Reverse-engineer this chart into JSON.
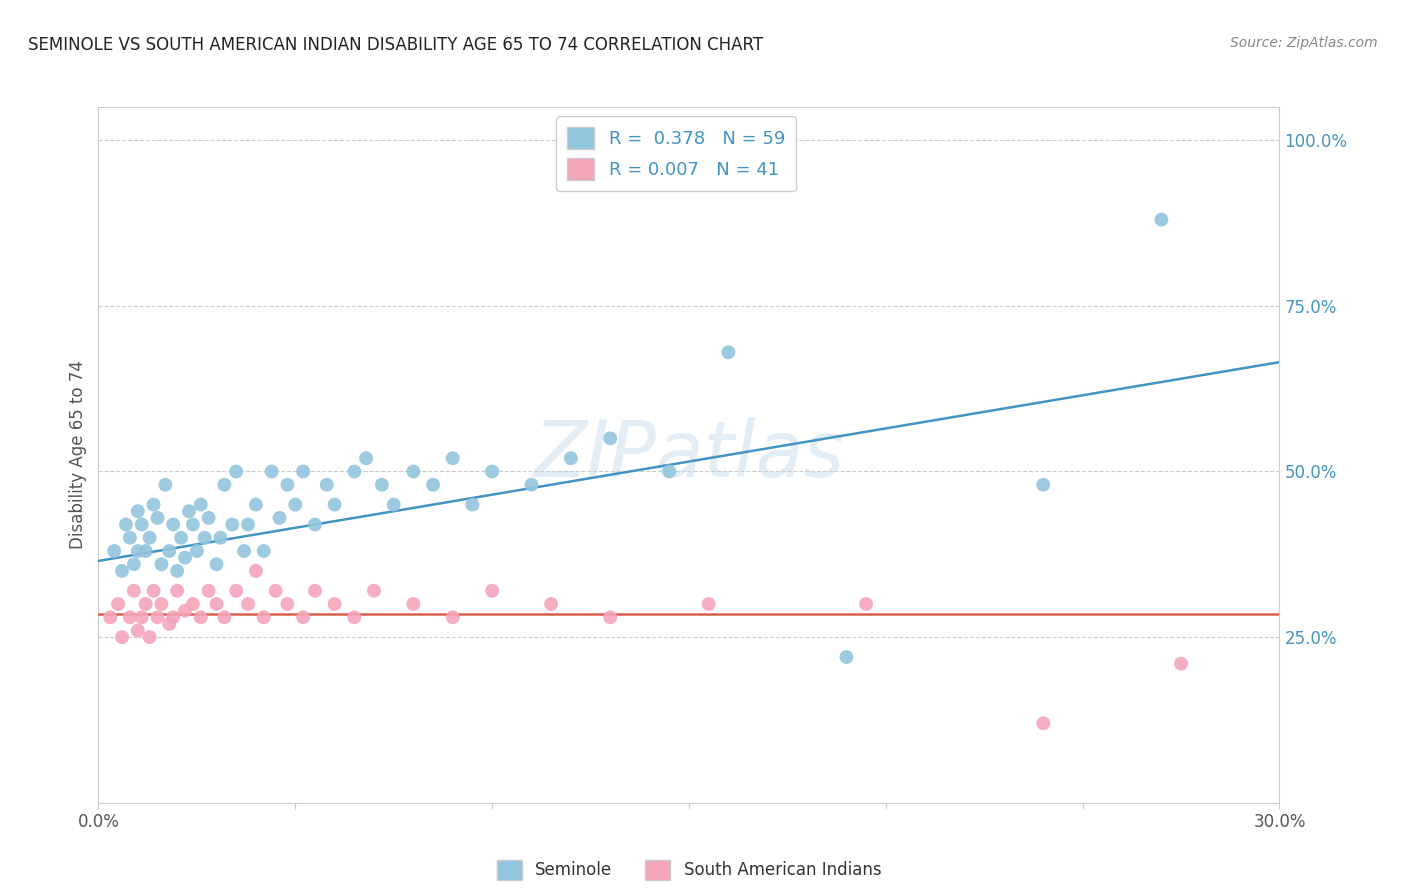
{
  "title": "SEMINOLE VS SOUTH AMERICAN INDIAN DISABILITY AGE 65 TO 74 CORRELATION CHART",
  "source": "Source: ZipAtlas.com",
  "ylabel": "Disability Age 65 to 74",
  "xlim": [
    0.0,
    0.3
  ],
  "ylim": [
    0.0,
    1.05
  ],
  "xticks": [
    0.0,
    0.05,
    0.1,
    0.15,
    0.2,
    0.25,
    0.3
  ],
  "xticklabels": [
    "0.0%",
    "",
    "",
    "",
    "",
    "",
    "30.0%"
  ],
  "ytick_right_vals": [
    0.25,
    0.5,
    0.75,
    1.0
  ],
  "ytick_right_labels": [
    "25.0%",
    "50.0%",
    "75.0%",
    "100.0%"
  ],
  "blue_color": "#92c5de",
  "pink_color": "#f4a5b8",
  "blue_line_color": "#4393c3",
  "pink_line_color": "#d6604d",
  "watermark": "ZIPatlas",
  "seminole_R": 0.378,
  "seminole_N": 59,
  "sai_R": 0.007,
  "sai_N": 41,
  "seminole_x": [
    0.004,
    0.006,
    0.007,
    0.008,
    0.009,
    0.01,
    0.01,
    0.011,
    0.012,
    0.013,
    0.014,
    0.015,
    0.016,
    0.017,
    0.018,
    0.019,
    0.02,
    0.021,
    0.022,
    0.023,
    0.024,
    0.025,
    0.026,
    0.027,
    0.028,
    0.03,
    0.031,
    0.032,
    0.034,
    0.035,
    0.037,
    0.038,
    0.04,
    0.042,
    0.044,
    0.046,
    0.048,
    0.05,
    0.052,
    0.055,
    0.058,
    0.06,
    0.065,
    0.068,
    0.072,
    0.075,
    0.08,
    0.085,
    0.09,
    0.095,
    0.1,
    0.11,
    0.12,
    0.13,
    0.145,
    0.16,
    0.19,
    0.24,
    0.27
  ],
  "seminole_y": [
    0.38,
    0.35,
    0.42,
    0.4,
    0.36,
    0.38,
    0.44,
    0.42,
    0.38,
    0.4,
    0.45,
    0.43,
    0.36,
    0.48,
    0.38,
    0.42,
    0.35,
    0.4,
    0.37,
    0.44,
    0.42,
    0.38,
    0.45,
    0.4,
    0.43,
    0.36,
    0.4,
    0.48,
    0.42,
    0.5,
    0.38,
    0.42,
    0.45,
    0.38,
    0.5,
    0.43,
    0.48,
    0.45,
    0.5,
    0.42,
    0.48,
    0.45,
    0.5,
    0.52,
    0.48,
    0.45,
    0.5,
    0.48,
    0.52,
    0.45,
    0.5,
    0.48,
    0.52,
    0.55,
    0.5,
    0.68,
    0.22,
    0.48,
    0.88
  ],
  "sai_x": [
    0.003,
    0.005,
    0.006,
    0.008,
    0.009,
    0.01,
    0.011,
    0.012,
    0.013,
    0.014,
    0.015,
    0.016,
    0.018,
    0.019,
    0.02,
    0.022,
    0.024,
    0.026,
    0.028,
    0.03,
    0.032,
    0.035,
    0.038,
    0.04,
    0.042,
    0.045,
    0.048,
    0.052,
    0.055,
    0.06,
    0.065,
    0.07,
    0.08,
    0.09,
    0.1,
    0.115,
    0.13,
    0.155,
    0.195,
    0.24,
    0.275
  ],
  "sai_y": [
    0.28,
    0.3,
    0.25,
    0.28,
    0.32,
    0.26,
    0.28,
    0.3,
    0.25,
    0.32,
    0.28,
    0.3,
    0.27,
    0.28,
    0.32,
    0.29,
    0.3,
    0.28,
    0.32,
    0.3,
    0.28,
    0.32,
    0.3,
    0.35,
    0.28,
    0.32,
    0.3,
    0.28,
    0.32,
    0.3,
    0.28,
    0.32,
    0.3,
    0.28,
    0.32,
    0.3,
    0.28,
    0.3,
    0.3,
    0.12,
    0.21
  ],
  "blue_trend_x": [
    0.0,
    0.3
  ],
  "blue_trend_y": [
    0.365,
    0.665
  ],
  "pink_trend_y": 0.285,
  "grid_color": "#cccccc",
  "bg_color": "#ffffff",
  "title_color": "#222222",
  "source_color": "#888888",
  "label_color": "#555555",
  "right_tick_color": "#4393c3"
}
